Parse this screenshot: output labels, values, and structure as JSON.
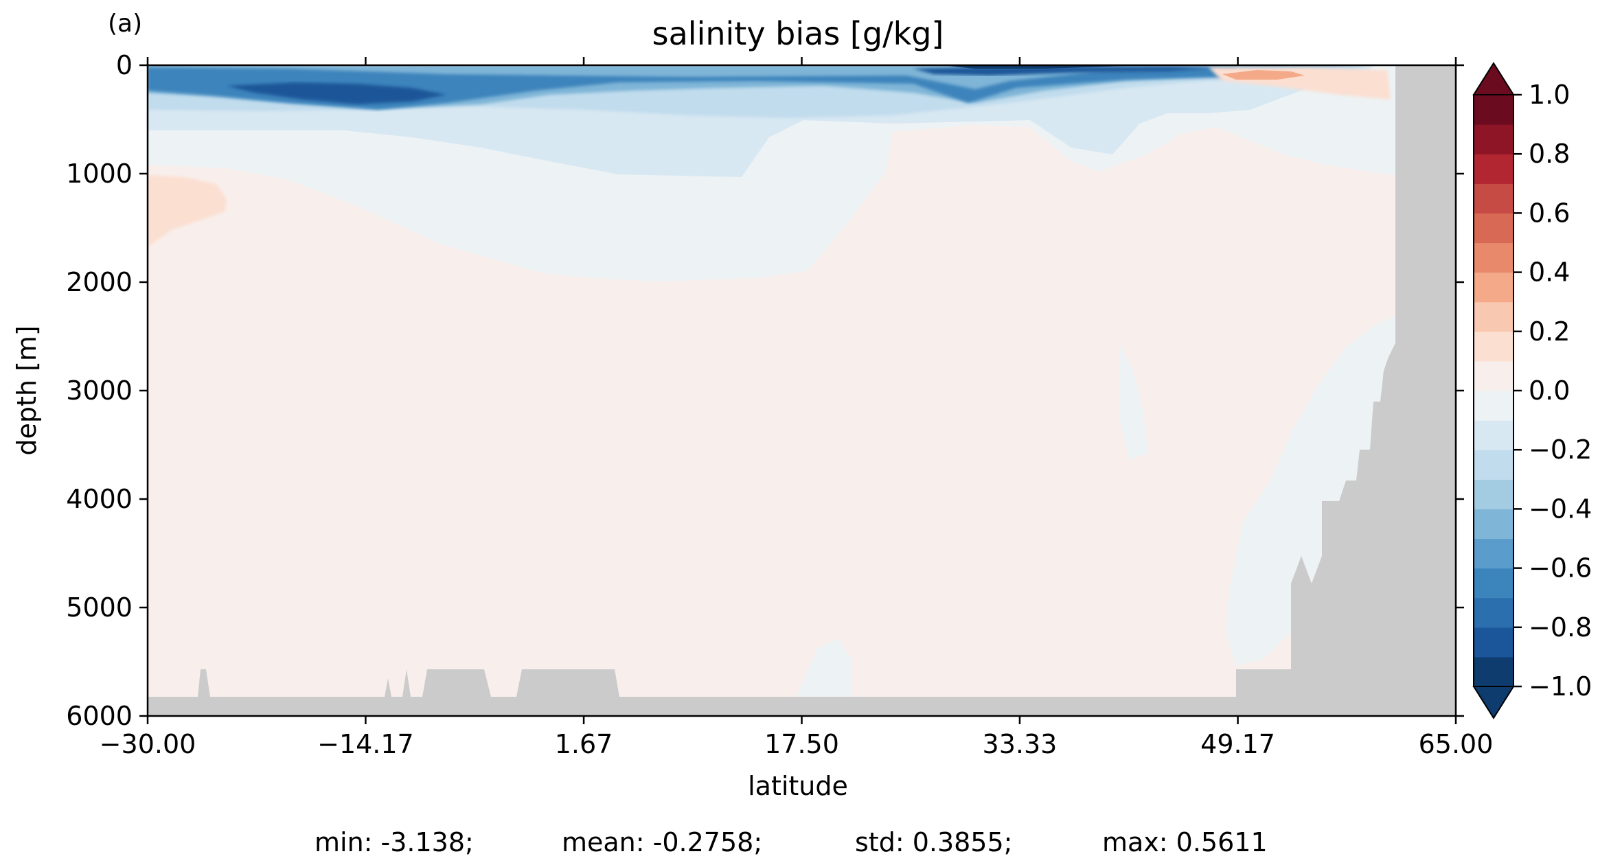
{
  "panel_label": "(a)",
  "chart_data": {
    "type": "heatmap",
    "title": "salinity bias [g/kg]",
    "xlabel": "latitude",
    "ylabel": "depth [m]",
    "xlim": [
      -30.0,
      65.0
    ],
    "ylim": [
      6000,
      0
    ],
    "y_inverted": true,
    "x_ticks": [
      "−30.00",
      "−14.17",
      "1.67",
      "17.50",
      "33.33",
      "49.17",
      "65.00"
    ],
    "x_tick_values": [
      -30.0,
      -14.17,
      1.67,
      17.5,
      33.33,
      49.17,
      65.0
    ],
    "y_ticks": [
      "0",
      "1000",
      "2000",
      "3000",
      "4000",
      "5000",
      "6000"
    ],
    "y_tick_values": [
      0,
      1000,
      2000,
      3000,
      4000,
      5000,
      6000
    ],
    "grid": false,
    "colorbar": {
      "position": "right",
      "vmin": -1.0,
      "vmax": 1.0,
      "levels": 20,
      "extend": "both",
      "cmap": "RdBu_r",
      "ticks": [
        "−1.0",
        "−0.8",
        "−0.6",
        "−0.4",
        "−0.2",
        "0.0",
        "0.2",
        "0.4",
        "0.6",
        "0.8",
        "1.0"
      ],
      "tick_values": [
        -1.0,
        -0.8,
        -0.6,
        -0.4,
        -0.2,
        0.0,
        0.2,
        0.4,
        0.6,
        0.8,
        1.0
      ],
      "colors": [
        "#0e3c6e",
        "#1a5699",
        "#2b6fae",
        "#3c84bc",
        "#5a9ccb",
        "#7fb5d7",
        "#a3cce3",
        "#c1dced",
        "#d8e8f2",
        "#edf2f5",
        "#f8efec",
        "#fbdfd1",
        "#f9c8b0",
        "#f4aa88",
        "#e8896b",
        "#d86a55",
        "#c64b44",
        "#b22631",
        "#8e1526",
        "#6b0b1f"
      ]
    },
    "land_mask_color": "#cbcbcb",
    "summary": {
      "min": "min: -3.138;",
      "mean": "mean: -0.2758;",
      "std": "std: 0.3855;",
      "max": "max: 0.5611"
    }
  }
}
